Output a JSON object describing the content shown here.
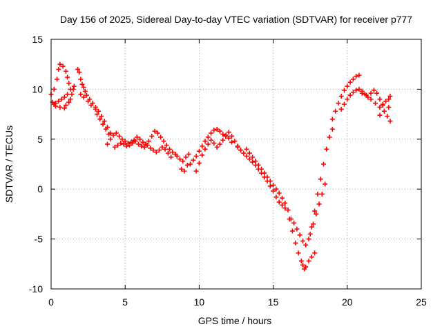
{
  "chart_data": {
    "type": "scatter",
    "title": "Day 156 of 2025, Sidereal Day-to-day VTEC variation (SDTVAR) for receiver p777",
    "xlabel": "GPS time / hours",
    "ylabel": "SDTVAR / TECUs",
    "xlim": [
      0,
      25
    ],
    "ylim": [
      -10,
      15
    ],
    "xticks": [
      "0",
      "5",
      "10",
      "15",
      "20",
      "25"
    ],
    "yticks": [
      "-10",
      "-5",
      "0",
      "5",
      "10",
      "15"
    ],
    "grid": true,
    "marker": "+",
    "color": "#ff0000",
    "series": [
      {
        "name": "SDTVAR",
        "x": [
          0.0,
          0.2,
          0.4,
          0.5,
          0.6,
          0.8,
          1.0,
          1.1,
          1.2,
          1.3,
          1.1,
          0.9,
          0.7,
          0.5,
          0.3,
          0.2,
          0.1,
          0.3,
          0.6,
          0.9,
          1.0,
          1.2,
          1.3,
          1.4,
          1.5,
          1.55,
          1.8,
          1.9,
          2.0,
          2.1,
          2.2,
          2.3,
          2.4,
          2.6,
          2.8,
          3.0,
          3.2,
          3.4,
          3.6,
          3.8,
          4.0,
          2.0,
          2.2,
          2.5,
          2.7,
          3.0,
          3.1,
          3.3,
          3.5,
          3.7,
          3.9,
          3.8,
          4.0,
          4.2,
          4.4,
          4.6,
          4.8,
          5.0,
          5.2,
          5.4,
          5.6,
          5.8,
          6.0,
          6.2,
          6.4,
          6.6,
          6.8,
          7.0,
          7.2,
          7.4,
          7.6,
          7.8,
          8.0,
          8.2,
          8.4,
          4.3,
          4.5,
          4.7,
          4.9,
          5.1,
          5.3,
          5.5,
          5.7,
          5.9,
          6.1,
          6.3,
          6.5,
          6.7,
          6.9,
          7.1,
          7.3,
          7.5,
          7.7,
          7.9,
          8.1,
          8.5,
          8.7,
          8.9,
          9.1,
          9.3,
          8.8,
          9.0,
          9.2,
          9.4,
          9.6,
          9.8,
          10.0,
          10.2,
          10.4,
          10.6,
          10.8,
          11.0,
          11.2,
          11.4,
          11.6,
          11.8,
          12.0,
          12.2,
          9.8,
          10.0,
          10.2,
          10.4,
          10.6,
          10.8,
          11.0,
          11.2,
          11.4,
          11.6,
          11.8,
          12.0,
          12.2,
          12.4,
          12.6,
          12.8,
          12.6,
          12.8,
          13.0,
          13.2,
          13.4,
          13.6,
          13.8,
          14.0,
          14.2,
          14.4,
          14.6,
          14.8,
          15.0,
          15.2,
          15.4,
          15.6,
          15.8,
          16.0,
          13.2,
          13.4,
          13.6,
          13.8,
          14.0,
          14.2,
          14.4,
          14.6,
          14.8,
          15.0,
          15.2,
          15.4,
          15.6,
          15.8,
          16.1,
          16.3,
          16.5,
          16.7,
          16.9,
          17.0,
          17.1,
          17.2,
          17.4,
          17.6,
          17.8,
          16.2,
          16.4,
          16.6,
          16.8,
          17.0,
          17.2,
          17.4,
          17.6,
          17.8,
          18.0,
          18.2,
          18.4,
          18.6,
          18.8,
          19.0,
          17.5,
          17.7,
          17.9,
          18.1,
          18.3,
          18.5,
          19.0,
          19.2,
          19.4,
          19.6,
          19.8,
          20.0,
          20.2,
          20.4,
          20.6,
          20.8,
          19.6,
          19.8,
          20.0,
          20.2,
          20.4,
          20.6,
          20.8,
          21.0,
          21.2,
          21.4,
          21.6,
          21.8,
          22.0,
          22.2,
          22.4,
          21.0,
          21.3,
          21.6,
          21.9,
          22.2,
          22.5,
          22.7,
          22.9,
          22.4,
          22.6,
          22.8,
          22.9,
          22.2,
          22.5,
          22.8
        ],
        "y": [
          9.5,
          10.0,
          11.0,
          12.0,
          12.5,
          12.3,
          11.8,
          11.2,
          10.6,
          10.0,
          9.5,
          9.2,
          9.0,
          8.8,
          8.6,
          8.5,
          8.7,
          8.3,
          8.2,
          8.1,
          8.4,
          8.7,
          9.0,
          9.5,
          10.0,
          10.3,
          12.0,
          11.7,
          11.0,
          10.5,
          10.2,
          9.8,
          9.4,
          9.0,
          8.6,
          8.2,
          7.8,
          7.3,
          6.8,
          6.2,
          5.6,
          9.5,
          9.2,
          8.8,
          8.4,
          8.0,
          7.5,
          7.0,
          6.5,
          6.0,
          5.5,
          4.5,
          5.0,
          5.4,
          5.6,
          5.3,
          5.0,
          4.8,
          4.6,
          4.7,
          4.9,
          5.2,
          5.0,
          4.7,
          4.5,
          4.8,
          5.3,
          5.8,
          5.6,
          5.2,
          4.8,
          4.4,
          4.0,
          3.7,
          3.5,
          4.2,
          4.4,
          4.6,
          4.5,
          4.3,
          4.4,
          4.6,
          4.8,
          4.5,
          4.3,
          4.2,
          4.4,
          4.1,
          3.9,
          3.7,
          3.9,
          4.2,
          4.0,
          3.6,
          3.2,
          3.3,
          3.0,
          2.8,
          3.2,
          3.5,
          2.0,
          1.8,
          2.4,
          2.5,
          2.9,
          3.3,
          3.8,
          4.3,
          4.8,
          5.2,
          5.6,
          5.9,
          6.0,
          5.8,
          5.5,
          5.3,
          5.1,
          4.7,
          1.8,
          2.6,
          3.4,
          4.0,
          4.5,
          4.9,
          4.6,
          4.2,
          4.5,
          4.9,
          5.4,
          5.7,
          5.3,
          4.8,
          4.3,
          3.9,
          4.2,
          3.9,
          3.6,
          3.3,
          3.0,
          2.7,
          2.4,
          2.0,
          1.6,
          1.2,
          0.8,
          0.3,
          -0.2,
          -0.8,
          -1.3,
          -1.6,
          -1.9,
          -2.1,
          4.0,
          3.6,
          3.2,
          2.8,
          2.4,
          2.0,
          1.6,
          1.2,
          0.8,
          0.4,
          0.0,
          -0.4,
          -0.9,
          -1.4,
          -3.0,
          -4.2,
          -5.4,
          -6.4,
          -7.2,
          -7.6,
          -8.0,
          -7.8,
          -7.2,
          -6.8,
          -6.4,
          -3.0,
          -3.4,
          -4.0,
          -4.6,
          -5.2,
          -5.6,
          -5.0,
          -3.8,
          -2.2,
          -0.5,
          1.0,
          2.5,
          4.0,
          5.2,
          6.0,
          -4.5,
          -3.5,
          -2.5,
          -1.5,
          -0.5,
          0.5,
          7.0,
          7.8,
          8.6,
          9.3,
          9.9,
          10.3,
          10.7,
          11.0,
          11.3,
          11.4,
          8.0,
          8.5,
          9.0,
          9.4,
          9.7,
          9.9,
          10.0,
          9.8,
          9.5,
          9.2,
          9.6,
          9.9,
          9.6,
          9.0,
          8.4,
          9.6,
          9.4,
          9.0,
          8.6,
          8.2,
          7.8,
          7.3,
          6.8,
          8.5,
          8.8,
          9.0,
          9.3,
          7.4,
          7.8,
          8.2
        ]
      }
    ]
  }
}
